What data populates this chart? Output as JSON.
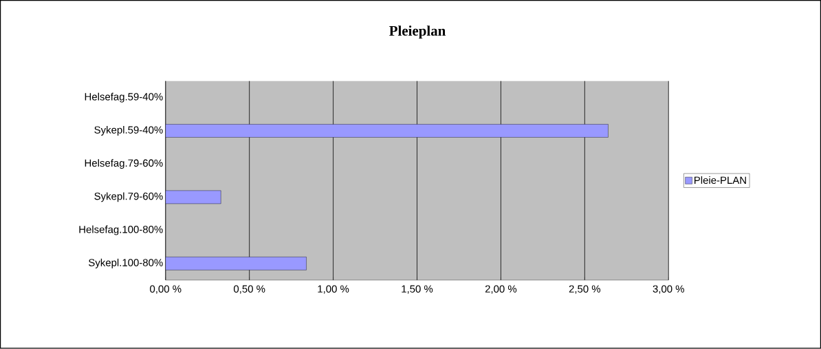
{
  "chart_data": {
    "type": "bar",
    "orientation": "horizontal",
    "title": "Pleieplan",
    "categories": [
      "Helsefag.59-40%",
      "Sykepl.59-40%",
      "Helsefag.79-60%",
      "Sykepl.79-60%",
      "Helsefag.100-80%",
      "Sykepl.100-80%"
    ],
    "series": [
      {
        "name": "Pleie-PLAN",
        "color": "#9999ff",
        "values": [
          null,
          2.64,
          null,
          0.33,
          null,
          0.84
        ]
      }
    ],
    "xlim": [
      0,
      3
    ],
    "xticks": [
      {
        "value": 0,
        "label": "0,00 %"
      },
      {
        "value": 0.5,
        "label": "0,50 %"
      },
      {
        "value": 1,
        "label": "1,00 %"
      },
      {
        "value": 1.5,
        "label": "1,50 %"
      },
      {
        "value": 2,
        "label": "2,00 %"
      },
      {
        "value": 2.5,
        "label": "2,50 %"
      },
      {
        "value": 3,
        "label": "3,00 %"
      }
    ],
    "grid": "x",
    "legend": "right"
  }
}
